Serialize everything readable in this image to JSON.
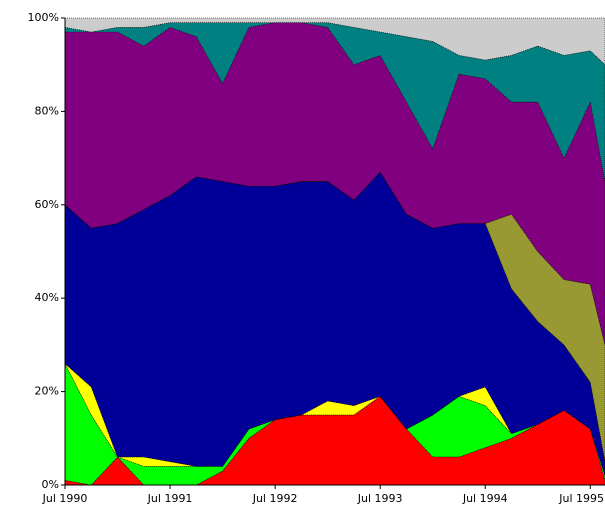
{
  "chart_data": {
    "type": "stacked_area",
    "x": [
      1990.5,
      1990.75,
      1991.0,
      1991.25,
      1991.5,
      1991.75,
      1992.0,
      1992.25,
      1992.5,
      1992.75,
      1993.0,
      1993.25,
      1993.5,
      1993.75,
      1994.0,
      1994.25,
      1994.5,
      1994.75,
      1995.0,
      1995.25,
      1995.5,
      1995.64
    ],
    "xlim": [
      1990.5,
      1995.64
    ],
    "xticks": [
      {
        "value": 1990.5,
        "label": "Jul 1990"
      },
      {
        "value": 1991.5,
        "label": "Jul 1991"
      },
      {
        "value": 1992.5,
        "label": "Jul 1992"
      },
      {
        "value": 1993.5,
        "label": "Jul 1993"
      },
      {
        "value": 1994.5,
        "label": "Jul 1994"
      },
      {
        "value": 1995.5,
        "label": "Jul 1995"
      }
    ],
    "ylim": [
      0,
      100
    ],
    "yticks": [
      {
        "value": 0,
        "label": "0%"
      },
      {
        "value": 20,
        "label": "20%"
      },
      {
        "value": 40,
        "label": "40%"
      },
      {
        "value": 60,
        "label": "60%"
      },
      {
        "value": 80,
        "label": "80%"
      },
      {
        "value": 100,
        "label": "100%"
      }
    ],
    "series": [
      {
        "color": "#ff0000",
        "values": [
          1,
          0,
          6,
          0,
          0,
          0,
          3,
          10,
          14,
          15,
          15,
          15,
          19,
          12,
          6,
          6,
          8,
          10,
          13,
          16,
          12,
          1
        ]
      },
      {
        "color": "#00ff00",
        "values": [
          25,
          15,
          0,
          4,
          4,
          4,
          1,
          2,
          0,
          0,
          0,
          0,
          0,
          0,
          9,
          13,
          9,
          1,
          0,
          0,
          0,
          1
        ]
      },
      {
        "color": "#ffff00",
        "values": [
          0,
          6,
          0,
          2,
          1,
          0,
          0,
          0,
          0,
          0,
          3,
          2,
          0,
          0,
          0,
          0,
          4,
          0,
          0,
          0,
          0,
          0
        ]
      },
      {
        "color": "#000099",
        "values": [
          34,
          34,
          50,
          53,
          57,
          62,
          61,
          52,
          50,
          50,
          47,
          44,
          48,
          46,
          40,
          37,
          35,
          31,
          22,
          14,
          10,
          3
        ]
      },
      {
        "color": "#999933",
        "values": [
          0,
          0,
          0,
          0,
          0,
          0,
          0,
          0,
          0,
          0,
          0,
          0,
          0,
          0,
          0,
          0,
          0,
          16,
          15,
          14,
          21,
          25
        ]
      },
      {
        "color": "#800080",
        "values": [
          37,
          42,
          41,
          35,
          36,
          30,
          21,
          34,
          35,
          34,
          33,
          29,
          25,
          24,
          17,
          32,
          31,
          24,
          32,
          26,
          39,
          35
        ]
      },
      {
        "color": "#008080",
        "values": [
          1,
          0,
          1,
          4,
          1,
          3,
          13,
          1,
          0,
          0,
          1,
          8,
          5,
          14,
          23,
          4,
          4,
          10,
          12,
          22,
          11,
          25
        ]
      },
      {
        "color": "#cccccc",
        "values": [
          2,
          3,
          2,
          2,
          1,
          1,
          1,
          1,
          1,
          1,
          1,
          2,
          3,
          4,
          5,
          8,
          9,
          8,
          6,
          8,
          7,
          10
        ]
      }
    ]
  }
}
